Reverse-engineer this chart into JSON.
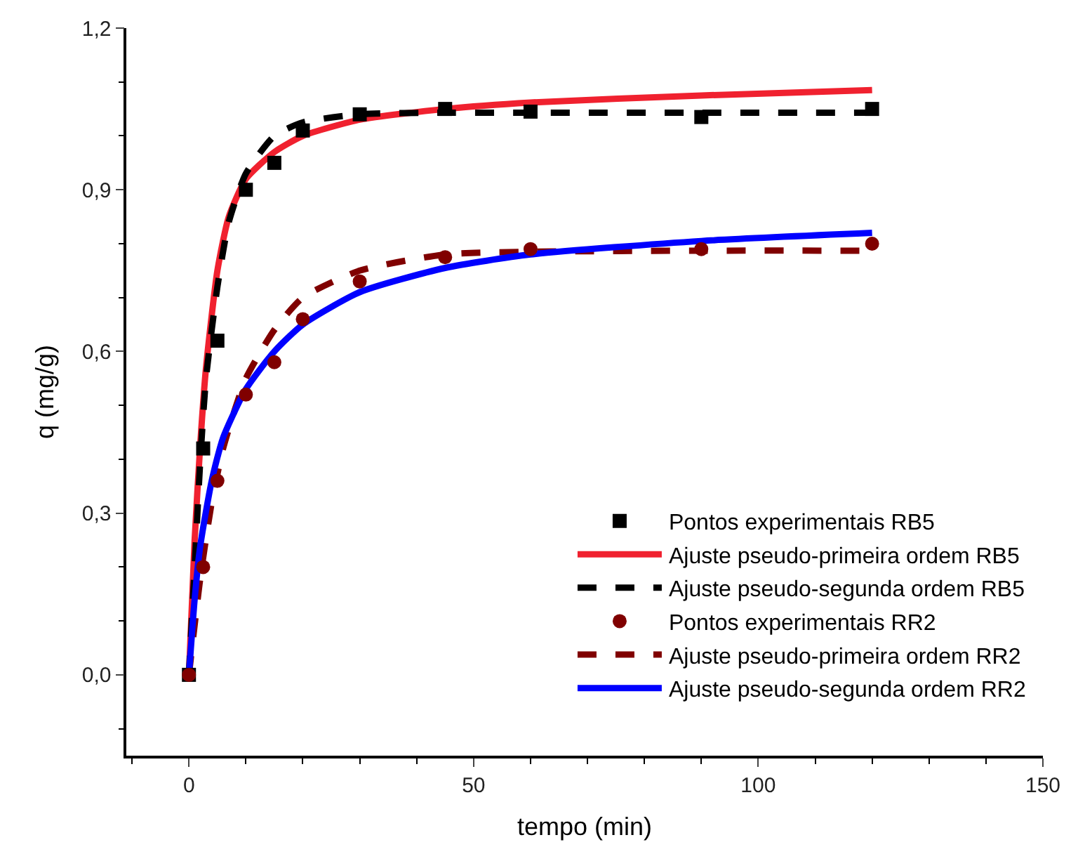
{
  "chart_data": {
    "type": "line",
    "xlabel": "tempo (min)",
    "ylabel": "q (mg/g)",
    "xlim": [
      -11,
      150
    ],
    "xticks": [
      0,
      50,
      100,
      150
    ],
    "ylim": [
      -0.15,
      1.2
    ],
    "yticks": [
      {
        "value": 0,
        "label": "0,0"
      },
      {
        "value": 0.3,
        "label": "0,3"
      },
      {
        "value": 0.6,
        "label": "0,6"
      },
      {
        "value": 0.9,
        "label": "0,9"
      },
      {
        "value": 1.2,
        "label": "1,2"
      }
    ],
    "legend": "bottom right",
    "series": [
      {
        "name": "Pontos experimentais RB5",
        "type": "scatter",
        "marker": "square",
        "color": "#000000",
        "x": [
          0,
          2.5,
          5,
          10,
          15,
          20,
          30,
          45,
          60,
          90,
          120
        ],
        "values": [
          0,
          0.42,
          0.62,
          0.9,
          0.95,
          1.01,
          1.04,
          1.05,
          1.045,
          1.035,
          1.05
        ]
      },
      {
        "name": "Ajuste pseudo-primeira ordem RB5",
        "line_style": "solid",
        "color": "#f0212f",
        "x": [
          0,
          1,
          2,
          3,
          5,
          7,
          10,
          15,
          20,
          30,
          45,
          60,
          90,
          120
        ],
        "values": [
          0,
          0.25,
          0.43,
          0.57,
          0.75,
          0.85,
          0.92,
          0.97,
          1.0,
          1.03,
          1.05,
          1.062,
          1.075,
          1.085
        ]
      },
      {
        "name": "Ajuste pseudo-segunda ordem RB5",
        "line_style": "dashed",
        "color": "#000000",
        "x": [
          0,
          1,
          2,
          3,
          5,
          7,
          10,
          15,
          20,
          30,
          45,
          60,
          90,
          120
        ],
        "values": [
          0,
          0.2,
          0.4,
          0.55,
          0.72,
          0.84,
          0.93,
          1.0,
          1.025,
          1.04,
          1.043,
          1.043,
          1.043,
          1.043
        ]
      },
      {
        "name": "Pontos experimentais RR2",
        "type": "scatter",
        "marker": "circle",
        "color": "#800000",
        "x": [
          0,
          2.5,
          5,
          10,
          15,
          20,
          30,
          45,
          60,
          90,
          120
        ],
        "values": [
          0,
          0.2,
          0.36,
          0.52,
          0.58,
          0.66,
          0.73,
          0.775,
          0.79,
          0.79,
          0.8
        ]
      },
      {
        "name": "Ajuste pseudo-primeira ordem RR2",
        "line_style": "dashed",
        "color": "#800000",
        "x": [
          0,
          2,
          4,
          6,
          8,
          10,
          15,
          20,
          30,
          45,
          60,
          90,
          120
        ],
        "values": [
          0,
          0.18,
          0.32,
          0.42,
          0.49,
          0.55,
          0.64,
          0.7,
          0.75,
          0.78,
          0.785,
          0.787,
          0.787
        ]
      },
      {
        "name": "Ajuste pseudo-segunda ordem RR2",
        "line_style": "solid",
        "color": "#0000ff",
        "x": [
          0,
          1,
          2,
          4,
          6,
          10,
          15,
          20,
          30,
          45,
          60,
          90,
          120
        ],
        "values": [
          0,
          0.14,
          0.24,
          0.36,
          0.44,
          0.53,
          0.6,
          0.65,
          0.71,
          0.755,
          0.78,
          0.805,
          0.82
        ]
      }
    ]
  }
}
